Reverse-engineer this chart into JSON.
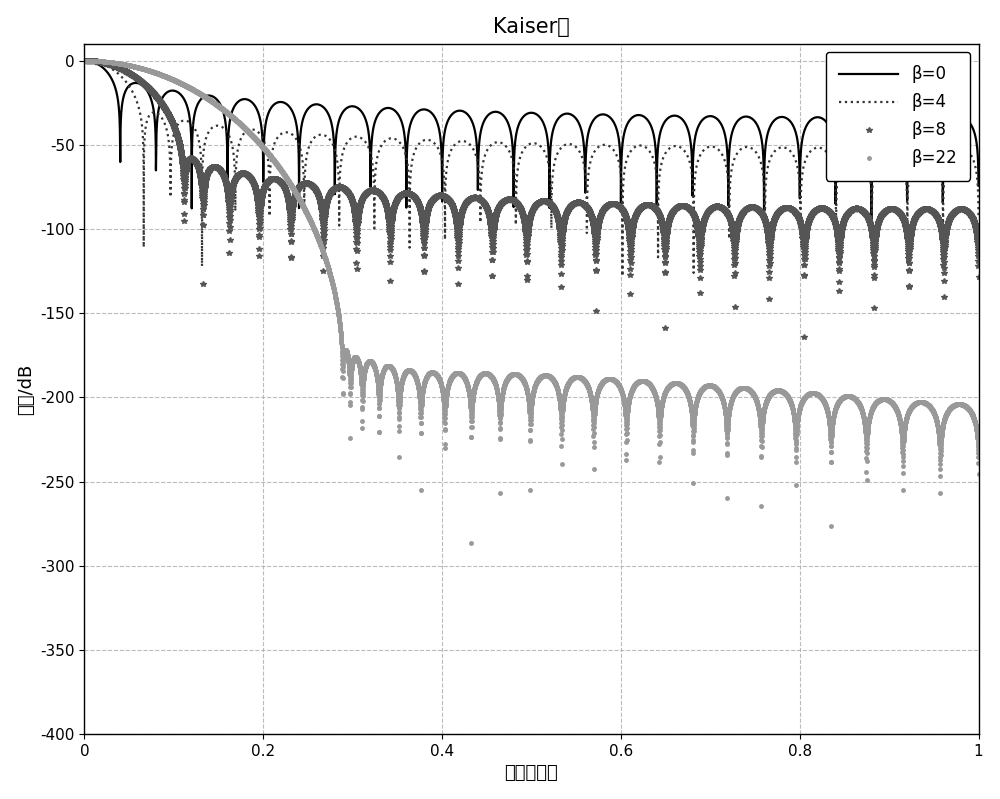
{
  "title": "Kaiser窗",
  "xlabel": "归一化频率",
  "ylabel": "振幅/dB",
  "xlim": [
    0,
    1
  ],
  "ylim": [
    -400,
    10
  ],
  "yticks": [
    0,
    -50,
    -100,
    -150,
    -200,
    -250,
    -300,
    -350,
    -400
  ],
  "xticks": [
    0,
    0.2,
    0.4,
    0.6,
    0.8,
    1.0
  ],
  "grid_color": "#aaaaaa",
  "background_color": "#ffffff",
  "N": 50,
  "beta_values": [
    0,
    4,
    8,
    22
  ],
  "legend_labels": [
    "β=0",
    "β=4",
    "β=8",
    "β=22"
  ],
  "nfft": 16384,
  "title_fontsize": 15,
  "label_fontsize": 13,
  "tick_fontsize": 11
}
